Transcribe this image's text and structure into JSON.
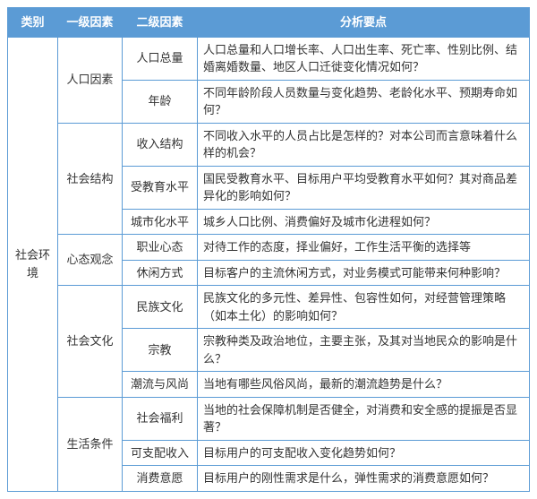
{
  "headers": {
    "category": "类别",
    "factor1": "一级因素",
    "factor2": "二级因素",
    "points": "分析要点"
  },
  "category": "社会环\n境",
  "groups": [
    {
      "factor1": "人口因素",
      "rows": [
        {
          "factor2": "人口总量",
          "points": "人口总量和人口增长率、人口出生率、死亡率、性别比例、结婚离婚数量、地区人口迁徙变化情况如何？"
        },
        {
          "factor2": "年龄",
          "points": "不同年龄阶段人员数量与变化趋势、老龄化水平、预期寿命如何？"
        }
      ]
    },
    {
      "factor1": "社会结构",
      "rows": [
        {
          "factor2": "收入结构",
          "points": "不同收入水平的人员占比是怎样的？对本公司而言意味着什么样的机会？"
        },
        {
          "factor2": "受教育水平",
          "points": "国民受教育水平、目标用户平均受教育水平如何？其对商品差异化的影响如何？"
        },
        {
          "factor2": "城市化水平",
          "points": "城乡人口比例、消费偏好及城市化进程如何？"
        }
      ]
    },
    {
      "factor1": "心态观念",
      "rows": [
        {
          "factor2": "职业心态",
          "points": "对待工作的态度，择业偏好，工作生活平衡的选择等"
        },
        {
          "factor2": "休闲方式",
          "points": "目标客户的主流休闲方式，对业务模式可能带来何种影响？"
        }
      ]
    },
    {
      "factor1": "社会文化",
      "rows": [
        {
          "factor2": "民族文化",
          "points": "民族文化的多元性、差异性、包容性如何，对经营管理策略（如本土化）的影响如何？"
        },
        {
          "factor2": "宗教",
          "points": "宗教种类及政治地位，主要主张，及其对当地民众的影响是什么？"
        },
        {
          "factor2": "潮流与风尚",
          "points": "当地有哪些风俗风尚，最新的潮流趋势是什么？"
        }
      ]
    },
    {
      "factor1": "生活条件",
      "rows": [
        {
          "factor2": "社会福利",
          "points": "当地的社会保障机制是否健全，对消费和安全感的提振是否显著？"
        },
        {
          "factor2": "可支配收入",
          "points": "目标用户的可支配收入变化趋势如何？"
        },
        {
          "factor2": "消费意愿",
          "points": "目标用户的刚性需求是什么，弹性需求的消费意愿如何？"
        }
      ]
    }
  ]
}
